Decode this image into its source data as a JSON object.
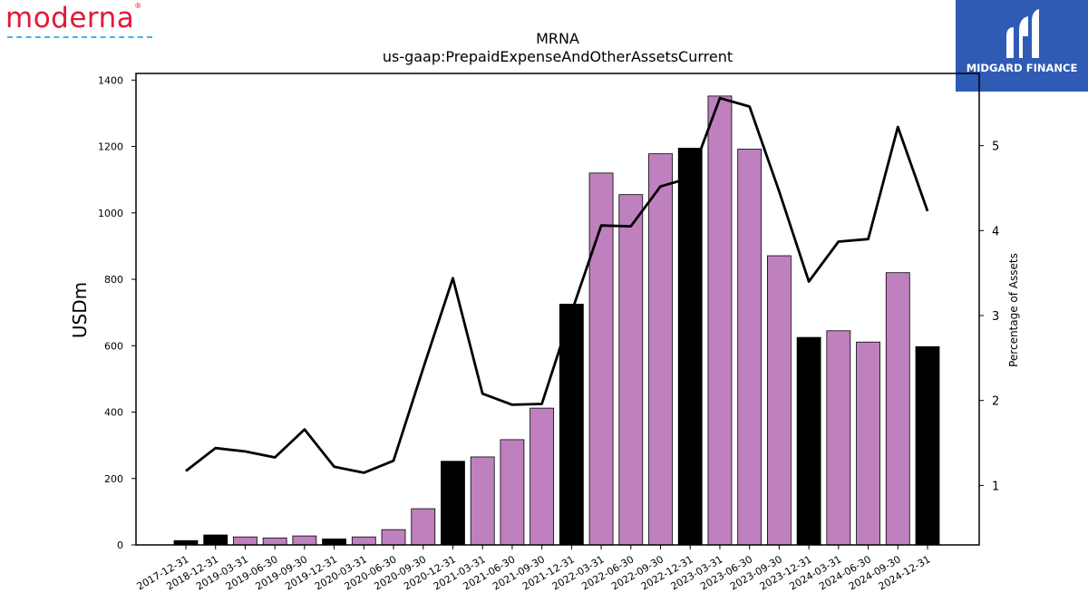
{
  "logos": {
    "left_text": "moderna",
    "right_text": "MIDGARD FINANCE"
  },
  "chart_data": {
    "type": "bar",
    "title": "MRNA",
    "subtitle": "us-gaap:PrepaidExpenseAndOtherAssetsCurrent",
    "ylabel": "USDm",
    "y2label": "Percentage of Assets",
    "ylim": [
      0,
      1420
    ],
    "y2lim": [
      0.3,
      5.85
    ],
    "yticks": [
      0,
      200,
      400,
      600,
      800,
      1000,
      1200,
      1400
    ],
    "y2ticks": [
      1,
      2,
      3,
      4,
      5
    ],
    "categories": [
      "2017-12-31",
      "2018-12-31",
      "2019-03-31",
      "2019-06-30",
      "2019-09-30",
      "2019-12-31",
      "2020-03-31",
      "2020-06-30",
      "2020-09-30",
      "2020-12-31",
      "2021-03-31",
      "2021-06-30",
      "2021-09-30",
      "2021-12-31",
      "2022-03-31",
      "2022-06-30",
      "2022-09-30",
      "2022-12-31",
      "2023-03-31",
      "2023-06-30",
      "2023-09-30",
      "2023-12-31",
      "2024-03-31",
      "2024-06-30",
      "2024-09-30",
      "2024-12-31"
    ],
    "series": [
      {
        "type": "bar",
        "values": [
          13,
          30,
          24,
          21,
          27,
          18,
          24,
          46,
          109,
          252,
          265,
          317,
          412,
          725,
          1120,
          1055,
          1178,
          1195,
          1352,
          1192,
          871,
          625,
          645,
          611,
          820,
          597
        ],
        "annual": [
          true,
          true,
          false,
          false,
          false,
          true,
          false,
          false,
          false,
          true,
          false,
          false,
          false,
          true,
          false,
          false,
          false,
          true,
          false,
          false,
          false,
          true,
          false,
          false,
          false,
          true
        ]
      },
      {
        "type": "line",
        "axis": "right",
        "values": [
          1.17,
          1.44,
          1.4,
          1.33,
          1.66,
          1.22,
          1.15,
          1.29,
          2.38,
          3.44,
          2.08,
          1.95,
          1.96,
          3.04,
          4.06,
          4.05,
          4.52,
          4.62,
          5.56,
          5.46,
          4.46,
          3.4,
          3.87,
          3.9,
          5.22,
          4.23
        ]
      }
    ],
    "colors": {
      "annual_bar": "#000000",
      "quarter_bar": "#bf80bf",
      "line": "#000000"
    }
  }
}
